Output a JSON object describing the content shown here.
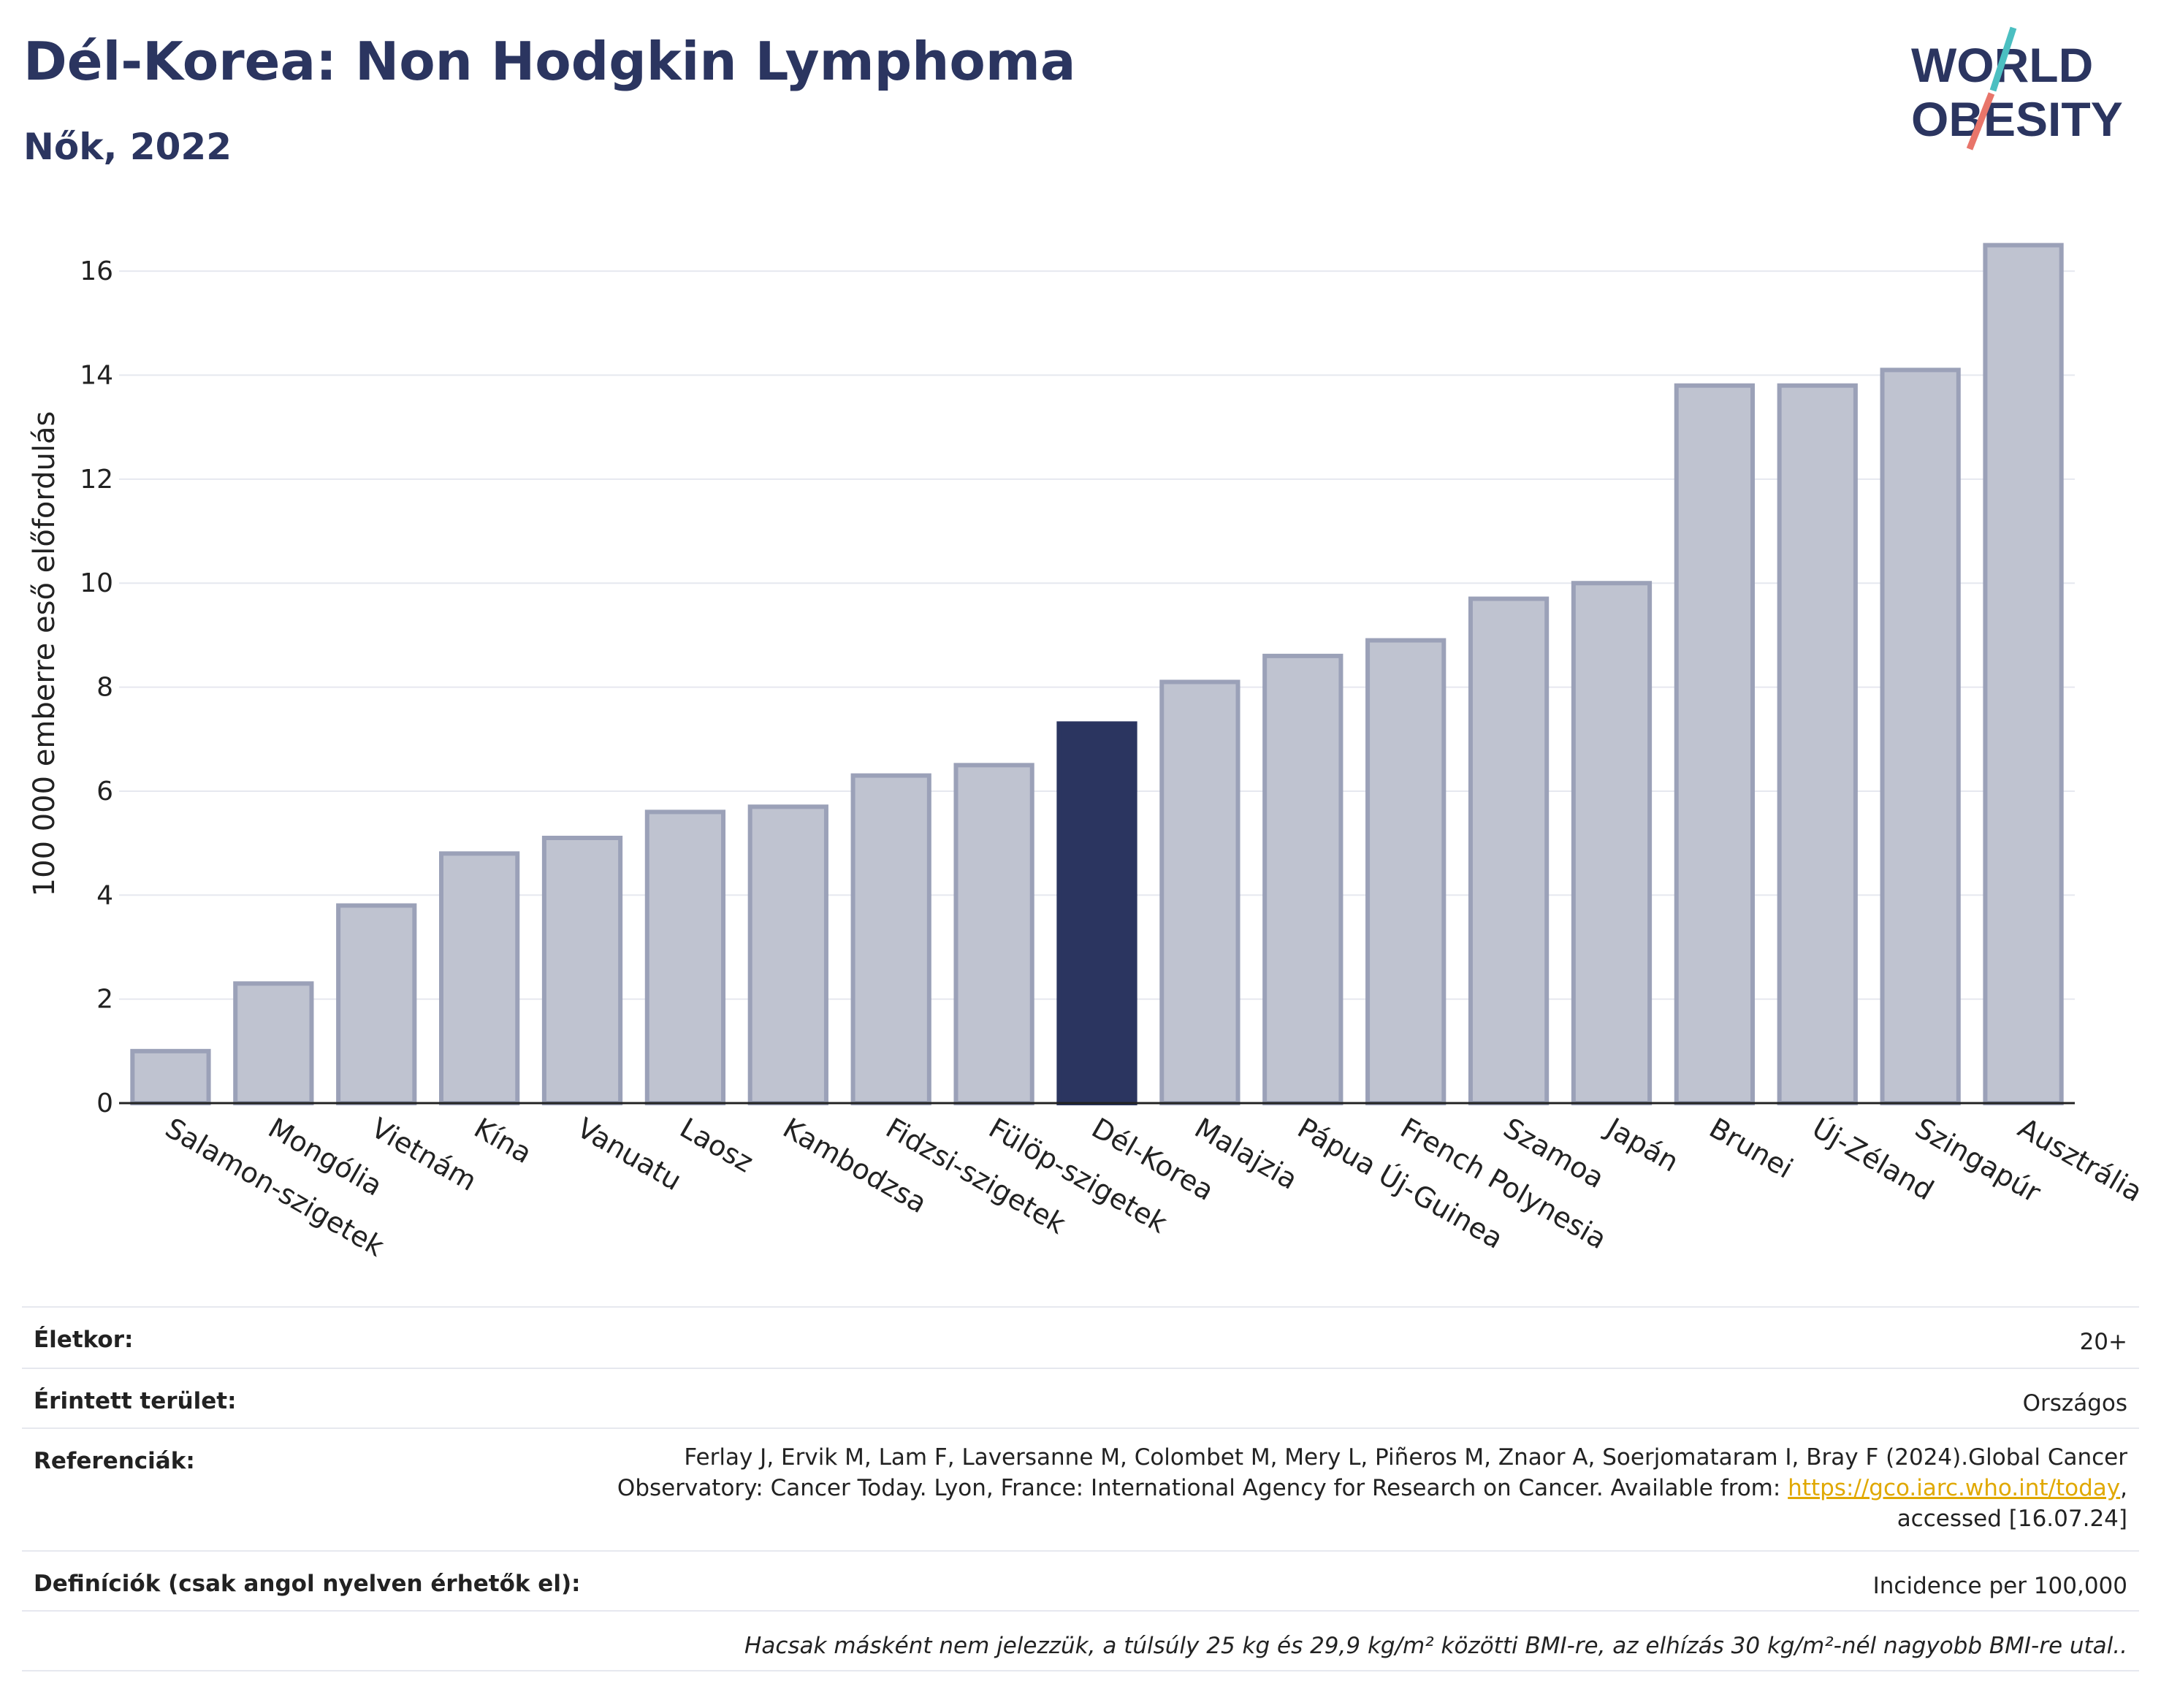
{
  "header": {
    "title": "Dél-Korea: Non Hodgkin Lymphoma",
    "subtitle": "Nők, 2022"
  },
  "logo": {
    "line1": "WORLD",
    "line2": "OBESITY",
    "accent_colors": [
      "#4bbfc1",
      "#e8756a"
    ]
  },
  "colors": {
    "bar": "#bfc3d0",
    "bar_border": "#9ba1b8",
    "highlight": "#2b3560",
    "grid": "#e6e8ef",
    "axis": "#222222"
  },
  "chart_data": {
    "type": "bar",
    "title": "",
    "xlabel": "",
    "ylabel": "100 000 emberre eső előfordulás",
    "ylim": [
      0,
      17
    ],
    "yticks": [
      0,
      2,
      4,
      6,
      8,
      10,
      12,
      14,
      16
    ],
    "grid": true,
    "highlight": "Dél-Korea",
    "categories": [
      "Salamon-szigetek",
      "Mongólia",
      "Vietnám",
      "Kína",
      "Vanuatu",
      "Laosz",
      "Kambodzsa",
      "Fidzsi-szigetek",
      "Fülöp-szigetek",
      "Dél-Korea",
      "Malajzia",
      "Pápua Új-Guinea",
      "French Polynesia",
      "Szamoa",
      "Japán",
      "Brunei",
      "Új-Zéland",
      "Szingapúr",
      "Ausztrália"
    ],
    "values": [
      1.0,
      2.3,
      3.8,
      4.8,
      5.1,
      5.6,
      5.7,
      6.3,
      6.5,
      7.3,
      8.1,
      8.6,
      8.9,
      9.7,
      10.0,
      13.8,
      13.8,
      14.1,
      16.5
    ]
  },
  "meta": {
    "age_label": "Életkor:",
    "age_value": "20+",
    "area_label": "Érintett terület:",
    "area_value": "Országos",
    "refs_label": "Referenciák:",
    "refs_line1": "Ferlay J, Ervik M, Lam F, Laversanne M, Colombet M, Mery L, Piñeros M, Znaor A, Soerjomataram I, Bray F (2024).Global Cancer",
    "refs_line2_pre": "Observatory: Cancer Today. Lyon, France: International Agency for Research on Cancer. Available from: ",
    "refs_link": "https://gco.iarc.who.int/today",
    "refs_line2_post": ",",
    "refs_line3": "accessed [16.07.24]",
    "defs_label": "Definíciók (csak angol nyelven érhetők el):",
    "defs_value": "Incidence per 100,000",
    "note": "Hacsak másként nem jelezzük, a túlsúly 25 kg és 29,9 kg/m² közötti BMI-re, az elhízás 30 kg/m²-nél nagyobb BMI-re utal.."
  }
}
